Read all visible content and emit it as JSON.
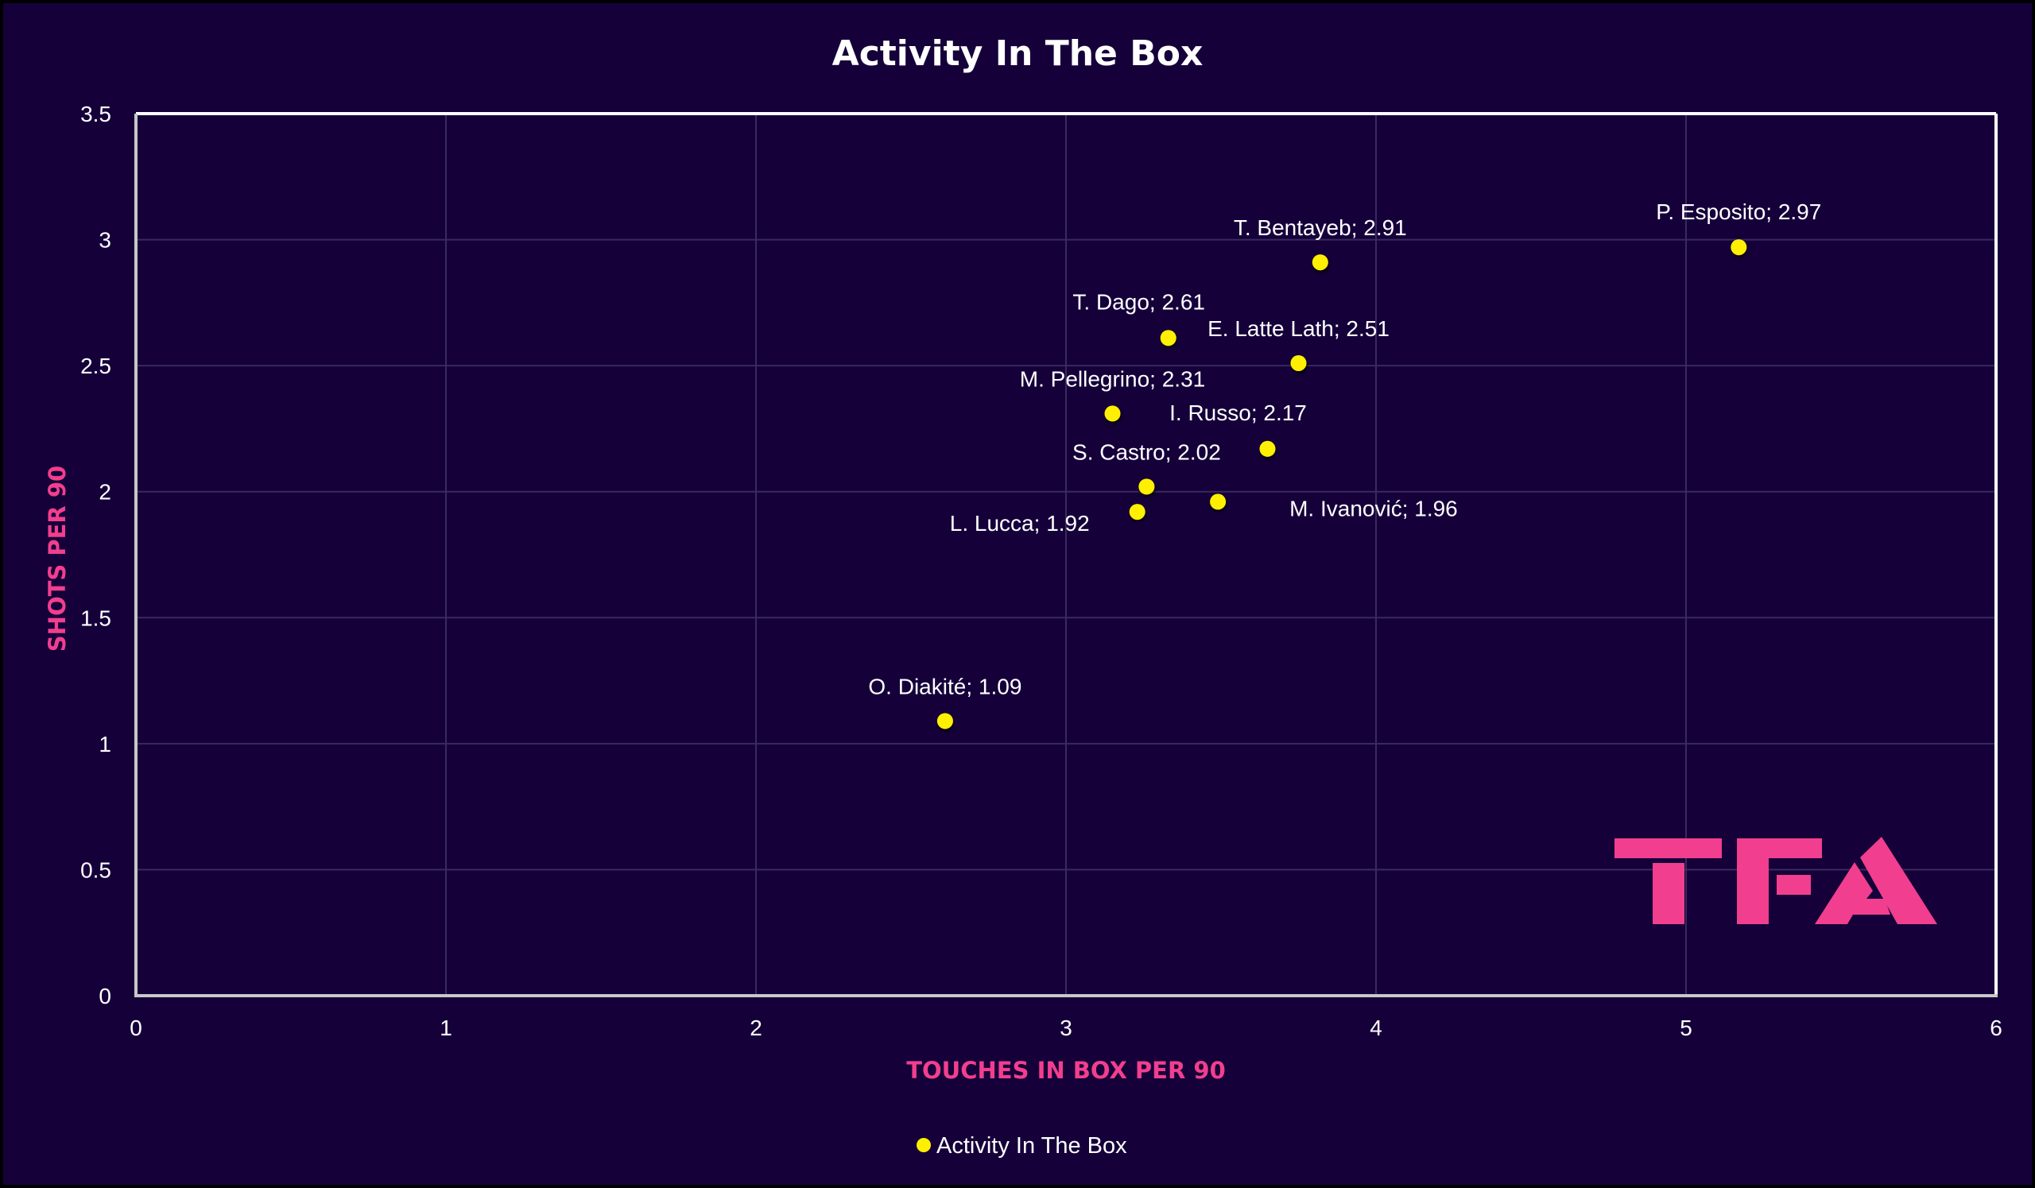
{
  "colors": {
    "background": "#15003a",
    "accent": "#f23e8e",
    "point": "#ffef00",
    "text": "#ffffff"
  },
  "logo": {
    "text": "TFA"
  },
  "chart_data": {
    "type": "scatter",
    "title": "Activity In The Box",
    "xlabel": "TOUCHES IN BOX PER 90",
    "ylabel": "SHOTS PER 90",
    "xlim": [
      0,
      6
    ],
    "ylim": [
      0,
      3.5
    ],
    "xticks": [
      "0",
      "1",
      "2",
      "3",
      "4",
      "5",
      "6"
    ],
    "yticks": [
      "0",
      "0.5",
      "1",
      "1.5",
      "2",
      "2.5",
      "3",
      "3.5"
    ],
    "grid": true,
    "legend": {
      "position": "bottom-center",
      "entries": [
        "Activity In The Box"
      ]
    },
    "series": [
      {
        "name": "Activity In The Box",
        "points": [
          {
            "label": "P. Esposito; 2.97",
            "player": "P. Esposito",
            "x": 5.17,
            "y": 2.97,
            "label_pos": "above"
          },
          {
            "label": "T. Bentayeb; 2.91",
            "player": "T. Bentayeb",
            "x": 3.82,
            "y": 2.91,
            "label_pos": "above"
          },
          {
            "label": "T. Dago; 2.61",
            "player": "T. Dago",
            "x": 3.33,
            "y": 2.61,
            "label_pos": "above-left"
          },
          {
            "label": "E. Latte Lath; 2.51",
            "player": "E. Latte Lath",
            "x": 3.75,
            "y": 2.51,
            "label_pos": "above"
          },
          {
            "label": "M. Pellegrino; 2.31",
            "player": "M. Pellegrino",
            "x": 3.15,
            "y": 2.31,
            "label_pos": "above"
          },
          {
            "label": "I. Russo; 2.17",
            "player": "I. Russo",
            "x": 3.65,
            "y": 2.17,
            "label_pos": "above-left"
          },
          {
            "label": "S. Castro; 2.02",
            "player": "S. Castro",
            "x": 3.26,
            "y": 2.02,
            "label_pos": "above"
          },
          {
            "label": "M. Ivanović; 1.96",
            "player": "M. Ivanović",
            "x": 3.49,
            "y": 1.96,
            "label_pos": "right"
          },
          {
            "label": "L. Lucca; 1.92",
            "player": "L. Lucca",
            "x": 3.23,
            "y": 1.92,
            "label_pos": "left"
          },
          {
            "label": "O. Diakité; 1.09",
            "player": "O. Diakité",
            "x": 2.61,
            "y": 1.09,
            "label_pos": "above"
          }
        ]
      }
    ]
  }
}
